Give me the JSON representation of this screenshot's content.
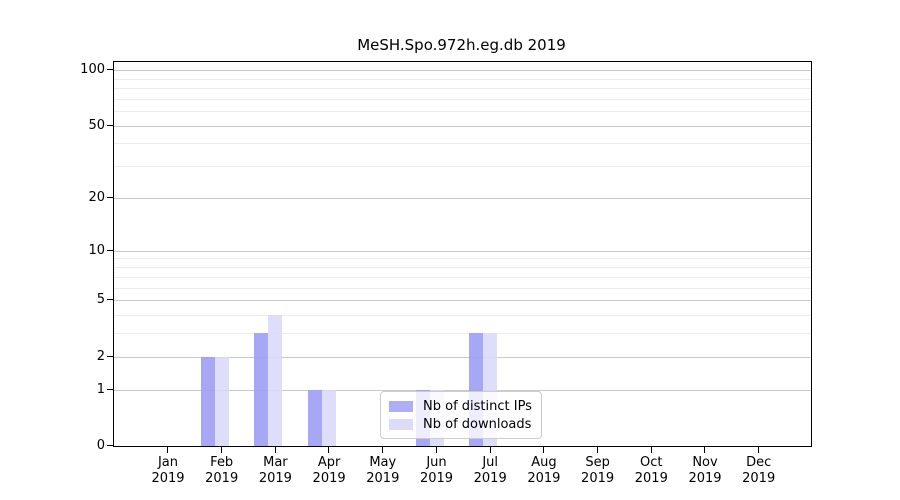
{
  "figure": {
    "title": "MeSH.Spo.972h.eg.db 2019"
  },
  "chart_data": {
    "type": "bar",
    "title": "MeSH.Spo.972h.eg.db 2019",
    "x_months": [
      "Jan",
      "Feb",
      "Mar",
      "Apr",
      "May",
      "Jun",
      "Jul",
      "Aug",
      "Sep",
      "Oct",
      "Nov",
      "Dec"
    ],
    "x_year": "2019",
    "categories": [
      "Jan 2019",
      "Feb 2019",
      "Mar 2019",
      "Apr 2019",
      "May 2019",
      "Jun 2019",
      "Jul 2019",
      "Aug 2019",
      "Sep 2019",
      "Oct 2019",
      "Nov 2019",
      "Dec 2019"
    ],
    "series": [
      {
        "name": "Nb of distinct IPs",
        "values": [
          0,
          2,
          3,
          1,
          0,
          1,
          3,
          0,
          0,
          0,
          0,
          0
        ]
      },
      {
        "name": "Nb of downloads",
        "values": [
          0,
          2,
          4,
          1,
          0,
          1,
          3,
          0,
          0,
          0,
          0,
          0
        ]
      }
    ],
    "yscale": "log(1+x)",
    "ylim": [
      0,
      100
    ],
    "ytick_values": [
      0,
      1,
      2,
      5,
      10,
      20,
      50,
      100
    ],
    "ytick_labels": [
      "0",
      "1",
      "2",
      "5",
      "10",
      "20",
      "50",
      "100"
    ],
    "minor_grid_values": [
      3,
      4,
      6,
      7,
      8,
      9,
      30,
      40,
      60,
      70,
      80,
      90
    ],
    "grid": true,
    "legend_location": "inside lower center"
  },
  "legend": {
    "items": [
      {
        "label": "Nb of distinct IPs"
      },
      {
        "label": "Nb of downloads"
      }
    ]
  },
  "colors": {
    "bar_distinct_ips_fill": "rgba(160,160,245,0.93)",
    "bar_downloads_fill": "rgba(217,217,250,0.87)",
    "legend_swatch_ips": "#aeaef4",
    "legend_swatch_downloads": "#dcdcfa",
    "grid_major": "#c9c9c9",
    "grid_minor": "#ececec",
    "axis": "#000000",
    "background": "#ffffff"
  }
}
